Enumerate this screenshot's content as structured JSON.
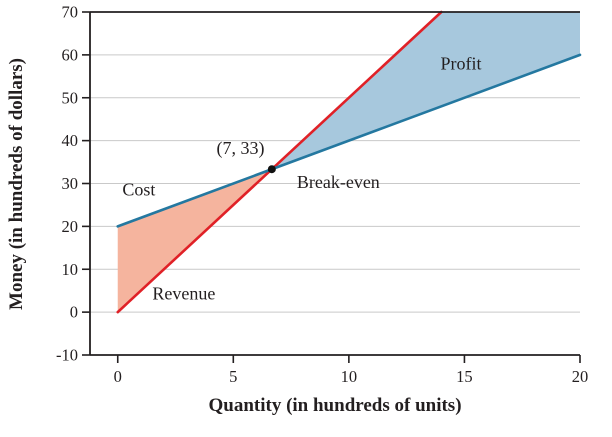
{
  "figure": {
    "description": "Break-even analysis graph showing cost and revenue lines with loss and profit regions"
  },
  "chart_data": {
    "type": "line",
    "title": "",
    "xlabel": "Quantity (in hundreds of units)",
    "ylabel": "Money (in hundreds of dollars)",
    "xlim": [
      -1.2,
      20
    ],
    "ylim": [
      -10,
      70
    ],
    "x_ticks": [
      0,
      5,
      10,
      15,
      20
    ],
    "y_ticks": [
      -10,
      0,
      10,
      20,
      30,
      40,
      50,
      60,
      70
    ],
    "grid": "horizontal-only",
    "legend": "none-inline-labels",
    "series": [
      {
        "name": "Revenue",
        "color": "#e02127",
        "points": [
          [
            0,
            0
          ],
          [
            14,
            70
          ]
        ]
      },
      {
        "name": "Cost",
        "color": "#2478a0",
        "points": [
          [
            0,
            20
          ],
          [
            20,
            60
          ]
        ]
      }
    ],
    "regions": [
      {
        "name": "loss-region",
        "color": "#f5b49e",
        "points": [
          [
            0,
            0
          ],
          [
            6.667,
            33.333
          ],
          [
            0,
            20
          ]
        ]
      },
      {
        "name": "profit-region",
        "color": "#a7c8dd",
        "points": [
          [
            6.667,
            33.333
          ],
          [
            14,
            70
          ],
          [
            20,
            70
          ],
          [
            20,
            60
          ]
        ]
      }
    ],
    "break_even_point": {
      "x": 6.667,
      "y": 33.333,
      "dot_color": "#111111"
    },
    "annotations": [
      {
        "name": "breakeven-coords-label",
        "text": "(7, 33)",
        "x": 6.35,
        "y": 36.9,
        "anchor": "end"
      },
      {
        "name": "break-even-label",
        "text": "Break-even",
        "x": 7.75,
        "y": 28.9,
        "anchor": "start"
      },
      {
        "name": "cost-label",
        "text": "Cost",
        "x": 0.2,
        "y": 27.2,
        "anchor": "start"
      },
      {
        "name": "revenue-label",
        "text": "Revenue",
        "x": 1.5,
        "y": 3.0,
        "anchor": "start"
      },
      {
        "name": "profit-label",
        "text": "Profit",
        "x": 14.85,
        "y": 56.6,
        "anchor": "middle"
      }
    ],
    "axis_color": "#231f20",
    "grid_color": "#c9c9c9",
    "text_color": "#231f20"
  }
}
